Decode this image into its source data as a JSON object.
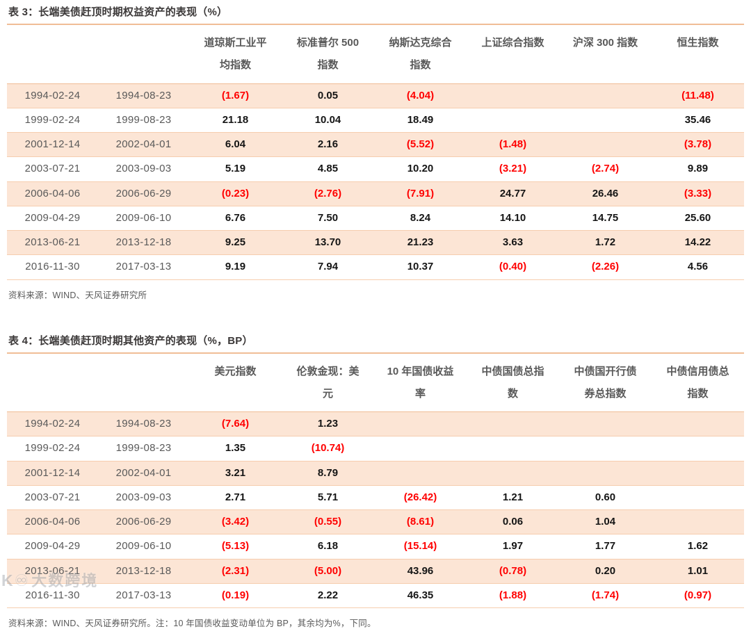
{
  "table3": {
    "title": "表 3：长端美债赶顶时期权益资产的表现（%）",
    "columns": [
      "道琼斯工业平均指数",
      "标准普尔 500 指数",
      "纳斯达克综合指数",
      "上证综合指数",
      "沪深 300 指数",
      "恒生指数"
    ],
    "rows": [
      {
        "start": "1994-02-24",
        "end": "1994-08-23",
        "values": [
          "(1.67)",
          "0.05",
          "(4.04)",
          "",
          "",
          "(11.48)"
        ]
      },
      {
        "start": "1999-02-24",
        "end": "1999-08-23",
        "values": [
          "21.18",
          "10.04",
          "18.49",
          "",
          "",
          "35.46"
        ]
      },
      {
        "start": "2001-12-14",
        "end": "2002-04-01",
        "values": [
          "6.04",
          "2.16",
          "(5.52)",
          "(1.48)",
          "",
          "(3.78)"
        ]
      },
      {
        "start": "2003-07-21",
        "end": "2003-09-03",
        "values": [
          "5.19",
          "4.85",
          "10.20",
          "(3.21)",
          "(2.74)",
          "9.89"
        ]
      },
      {
        "start": "2006-04-06",
        "end": "2006-06-29",
        "values": [
          "(0.23)",
          "(2.76)",
          "(7.91)",
          "24.77",
          "26.46",
          "(3.33)"
        ]
      },
      {
        "start": "2009-04-29",
        "end": "2009-06-10",
        "values": [
          "6.76",
          "7.50",
          "8.24",
          "14.10",
          "14.75",
          "25.60"
        ]
      },
      {
        "start": "2013-06-21",
        "end": "2013-12-18",
        "values": [
          "9.25",
          "13.70",
          "21.23",
          "3.63",
          "1.72",
          "14.22"
        ]
      },
      {
        "start": "2016-11-30",
        "end": "2017-03-13",
        "values": [
          "9.19",
          "7.94",
          "10.37",
          "(0.40)",
          "(2.26)",
          "4.56"
        ]
      }
    ],
    "source": "资料来源：WIND、天风证券研究所"
  },
  "table4": {
    "title": "表 4：长端美债赶顶时期其他资产的表现（%，BP）",
    "columns": [
      "美元指数",
      "伦敦金现：美元",
      "10 年国债收益率",
      "中债国债总指数",
      "中债国开行债券总指数",
      "中债信用债总指数"
    ],
    "rows": [
      {
        "start": "1994-02-24",
        "end": "1994-08-23",
        "values": [
          "(7.64)",
          "1.23",
          "",
          "",
          "",
          ""
        ]
      },
      {
        "start": "1999-02-24",
        "end": "1999-08-23",
        "values": [
          "1.35",
          "(10.74)",
          "",
          "",
          "",
          ""
        ]
      },
      {
        "start": "2001-12-14",
        "end": "2002-04-01",
        "values": [
          "3.21",
          "8.79",
          "",
          "",
          "",
          ""
        ]
      },
      {
        "start": "2003-07-21",
        "end": "2003-09-03",
        "values": [
          "2.71",
          "5.71",
          "(26.42)",
          "1.21",
          "0.60",
          ""
        ]
      },
      {
        "start": "2006-04-06",
        "end": "2006-06-29",
        "values": [
          "(3.42)",
          "(0.55)",
          "(8.61)",
          "0.06",
          "1.04",
          ""
        ]
      },
      {
        "start": "2009-04-29",
        "end": "2009-06-10",
        "values": [
          "(5.13)",
          "6.18",
          "(15.14)",
          "1.97",
          "1.77",
          "1.62"
        ]
      },
      {
        "start": "2013-06-21",
        "end": "2013-12-18",
        "values": [
          "(2.31)",
          "(5.00)",
          "43.96",
          "(0.78)",
          "0.20",
          "1.01"
        ]
      },
      {
        "start": "2016-11-30",
        "end": "2017-03-13",
        "values": [
          "(0.19)",
          "2.22",
          "46.35",
          "(1.88)",
          "(1.74)",
          "(0.97)"
        ]
      }
    ],
    "source": "资料来源：WIND、天风证券研究所。注：10 年国债收益变动单位为 BP，其余均为%，下同。"
  },
  "watermark": {
    "logo": "K♾",
    "text": "大数跨境"
  },
  "colors": {
    "stripe": "#fce5d5",
    "border": "#f0bd96",
    "negative": "#ff0000",
    "title_text": "#3b3838",
    "muted_text": "#595959"
  }
}
